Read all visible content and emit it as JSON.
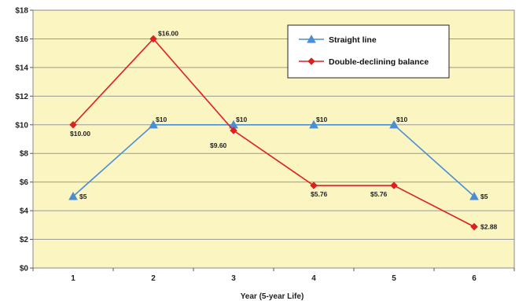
{
  "chart_data": {
    "type": "line",
    "title": "",
    "xlabel": "Year (5-year Life)",
    "ylabel": "",
    "x": [
      1,
      2,
      3,
      4,
      5,
      6
    ],
    "ylim": [
      0,
      18
    ],
    "yticks": [
      0,
      2,
      4,
      6,
      8,
      10,
      12,
      14,
      16,
      18
    ],
    "ytick_labels": [
      "$0",
      "$2",
      "$4",
      "$6",
      "$8",
      "$10",
      "$12",
      "$14",
      "$16",
      "$18"
    ],
    "grid": true,
    "legend_position": "top-right",
    "plot_background": "#fbf5c2",
    "series": [
      {
        "name": "Straight line",
        "color": "#4a8fd4",
        "marker": "triangle",
        "values": [
          5,
          10,
          10,
          10,
          10,
          5
        ],
        "labels": [
          "$5",
          "$10",
          "$10",
          "$10",
          "$10",
          "$5"
        ]
      },
      {
        "name": "Double-declining balance",
        "color": "#dd2020",
        "marker": "diamond",
        "values": [
          10,
          16,
          9.6,
          5.76,
          5.76,
          2.88
        ],
        "labels": [
          "$10.00",
          "$16.00",
          "$9.60",
          "$5.76",
          "$5.76",
          "$2.88"
        ]
      }
    ]
  }
}
